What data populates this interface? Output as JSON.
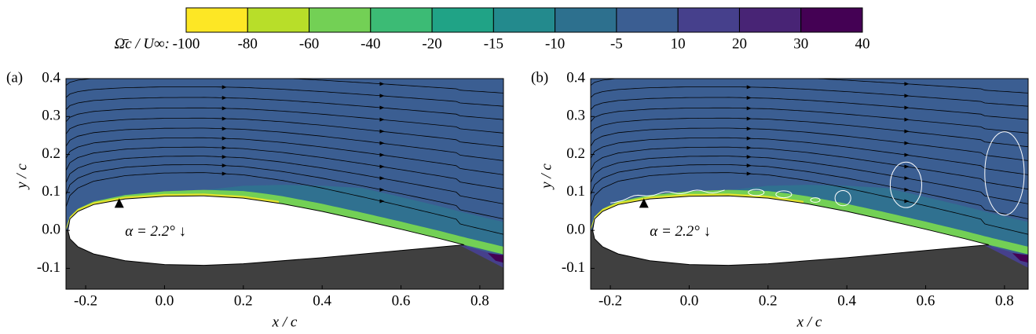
{
  "colorbar": {
    "label": "Ω̄c / U∞:",
    "levels": [
      -100,
      -80,
      -60,
      -40,
      -20,
      -15,
      -10,
      -5,
      10,
      20,
      30,
      40
    ],
    "colors": [
      "#fde725",
      "#b8de29",
      "#73d055",
      "#3cbb75",
      "#20a386",
      "#238a8d",
      "#2d708e",
      "#3b5e92",
      "#46408c",
      "#482475",
      "#440154"
    ]
  },
  "chart_data": [
    {
      "type": "contour",
      "panel_label": "(a)",
      "xlabel": "x / c",
      "ylabel": "y / c",
      "annotation": "α = 2.2° ↓",
      "xlim": [
        -0.25,
        0.86
      ],
      "ylim": [
        -0.155,
        0.4
      ],
      "xticks": [
        -0.2,
        {
          "value": 0,
          "label": "0.0"
        },
        0.2,
        0.4,
        0.6,
        0.8
      ],
      "yticks": [
        -0.1,
        {
          "value": 0,
          "label": "0.0"
        },
        0.1,
        0.2,
        0.3,
        0.4
      ]
    },
    {
      "type": "contour",
      "panel_label": "(b)",
      "xlabel": "x / c",
      "ylabel": "y / c",
      "annotation": "α = 2.2° ↓",
      "xlim": [
        -0.25,
        0.86
      ],
      "ylim": [
        -0.155,
        0.4
      ],
      "xticks": [
        -0.2,
        {
          "value": 0,
          "label": "0.0"
        },
        0.2,
        0.4,
        0.6,
        0.8
      ],
      "yticks": [
        -0.1,
        {
          "value": 0,
          "label": "0.0"
        },
        0.1,
        0.2,
        0.3,
        0.4
      ]
    }
  ]
}
